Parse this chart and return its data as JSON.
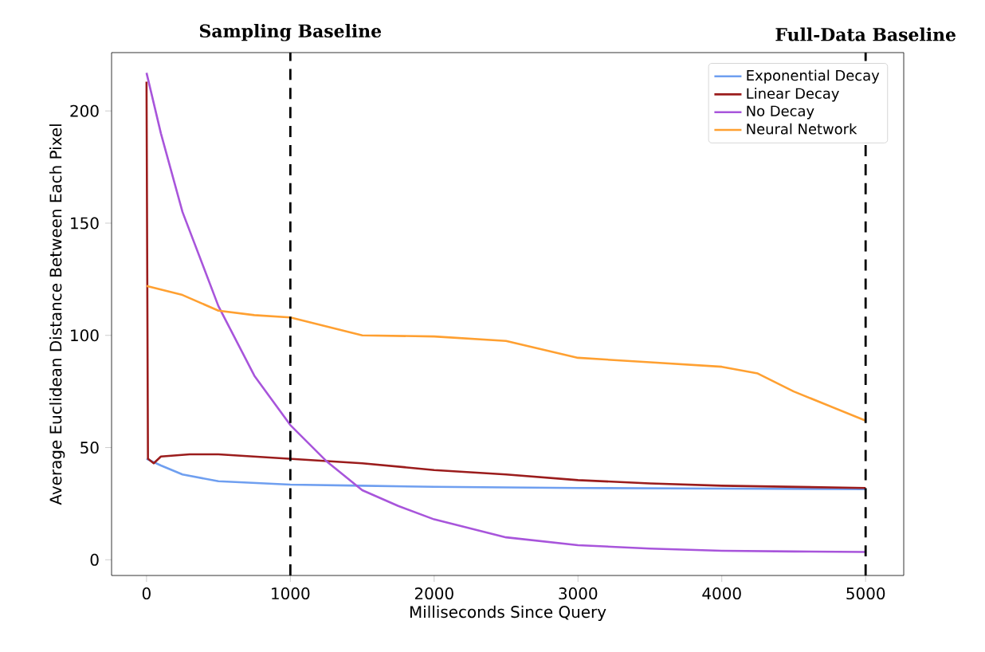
{
  "chart_data": {
    "type": "line",
    "xlabel": "Milliseconds Since Query",
    "ylabel": "Average Euclidean Distance Between Each Pixel",
    "xlim": [
      -243,
      5265
    ],
    "ylim": [
      -7,
      226
    ],
    "xticks": [
      0,
      1000,
      2000,
      3000,
      4000,
      5000
    ],
    "yticks": [
      0,
      50,
      100,
      150,
      200
    ],
    "grid": false,
    "legend": "top right",
    "series": [
      {
        "name": "Exponential Decay",
        "color": "#6f9ff0",
        "x": [
          0,
          100,
          250,
          500,
          1000,
          1500,
          2000,
          3000,
          4000,
          5000
        ],
        "values": [
          45,
          42,
          38,
          35,
          33.5,
          33,
          32.5,
          32,
          31.7,
          31.5
        ]
      },
      {
        "name": "Linear Decay",
        "color": "#9b1c1c",
        "x": [
          0,
          10,
          50,
          100,
          300,
          500,
          1000,
          1500,
          2000,
          2500,
          3000,
          3500,
          4000,
          5000
        ],
        "values": [
          213,
          45,
          43,
          46,
          47,
          47,
          45,
          43,
          40,
          38,
          35.5,
          34,
          33,
          32
        ]
      },
      {
        "name": "No Decay",
        "color": "#a855db",
        "x": [
          0,
          100,
          250,
          500,
          750,
          1000,
          1250,
          1500,
          1750,
          2000,
          2500,
          3000,
          3500,
          4000,
          4500,
          5000
        ],
        "values": [
          217,
          190,
          155,
          113,
          82,
          60,
          44,
          31,
          24,
          18,
          10,
          6.5,
          5,
          4,
          3.7,
          3.5
        ]
      },
      {
        "name": "Neural Network",
        "color": "#ffa031",
        "x": [
          0,
          250,
          500,
          750,
          1000,
          1250,
          1500,
          2000,
          2500,
          3000,
          3500,
          4000,
          4250,
          4500,
          5000
        ],
        "values": [
          122,
          118,
          111,
          109,
          108,
          104,
          100,
          99.5,
          97.5,
          90,
          88,
          86,
          83,
          75,
          62
        ]
      }
    ],
    "ref_lines": [
      {
        "axis": "x",
        "value": 1000,
        "label": "Sampling Baseline",
        "color": "#000000",
        "line_style": "dashed"
      },
      {
        "axis": "x",
        "value": 5000,
        "label": "Full-Data Baseline",
        "color": "#000000",
        "line_style": "dashed"
      }
    ]
  }
}
